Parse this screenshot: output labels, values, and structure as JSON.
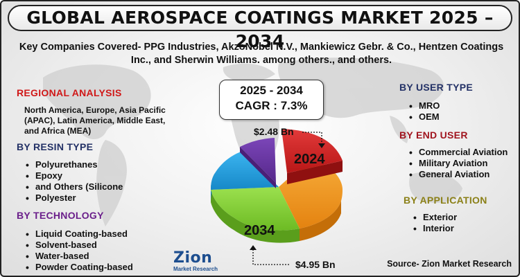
{
  "title": "GLOBAL AEROSPACE COATINGS MARKET 2025 – 2034",
  "subtitle": "Key Companies Covered- PPG Industries, AkzoNobel N.V., Mankiewicz Gebr. & Co., Hentzen Coatings Inc., and Sherwin Williams. among others., and others.",
  "regional": {
    "heading": "REGIONAL ANALYSIS",
    "text": "North America, Europe, Asia Pacific (APAC), Latin America, Middle East, and Africa (MEA)"
  },
  "resin": {
    "heading": "BY RESIN TYPE",
    "items": [
      "Polyurethanes",
      "Epoxy",
      "and Others (Silicone",
      "Polyester"
    ]
  },
  "technology": {
    "heading": "BY TECHNOLOGY",
    "items": [
      "Liquid Coating-based",
      "Solvent-based",
      "Water-based",
      "Powder Coating-based"
    ]
  },
  "user_type": {
    "heading": "BY USER TYPE",
    "items": [
      "MRO",
      "OEM"
    ]
  },
  "end_user": {
    "heading": "BY END USER",
    "items": [
      "Commercial Aviation",
      "Military Aviation",
      "General Aviation"
    ]
  },
  "application": {
    "heading": "BY APPLICATION",
    "items": [
      "Exterior",
      "Interior"
    ]
  },
  "forecast": {
    "period": "2025 - 2034",
    "cagr": "CAGR : 7.3%",
    "value_2024": "$2.48 Bn",
    "value_2034": "$4.95 Bn",
    "label_2024": "2024",
    "label_2034": "2034"
  },
  "logo": {
    "name": "Zion",
    "tagline": "Market Research"
  },
  "source": "Source- Zion Market Research",
  "colors": {
    "title_border": "#222222",
    "slice_red": "#d32626",
    "slice_orange": "#f49a22",
    "slice_green": "#86d43a",
    "slice_blue": "#29a6e6",
    "slice_purple": "#6b36a8",
    "regional_heading": "#d01818",
    "section_heading": "#233166",
    "technology_heading": "#6a1e8a",
    "application_heading": "#8b8018"
  }
}
